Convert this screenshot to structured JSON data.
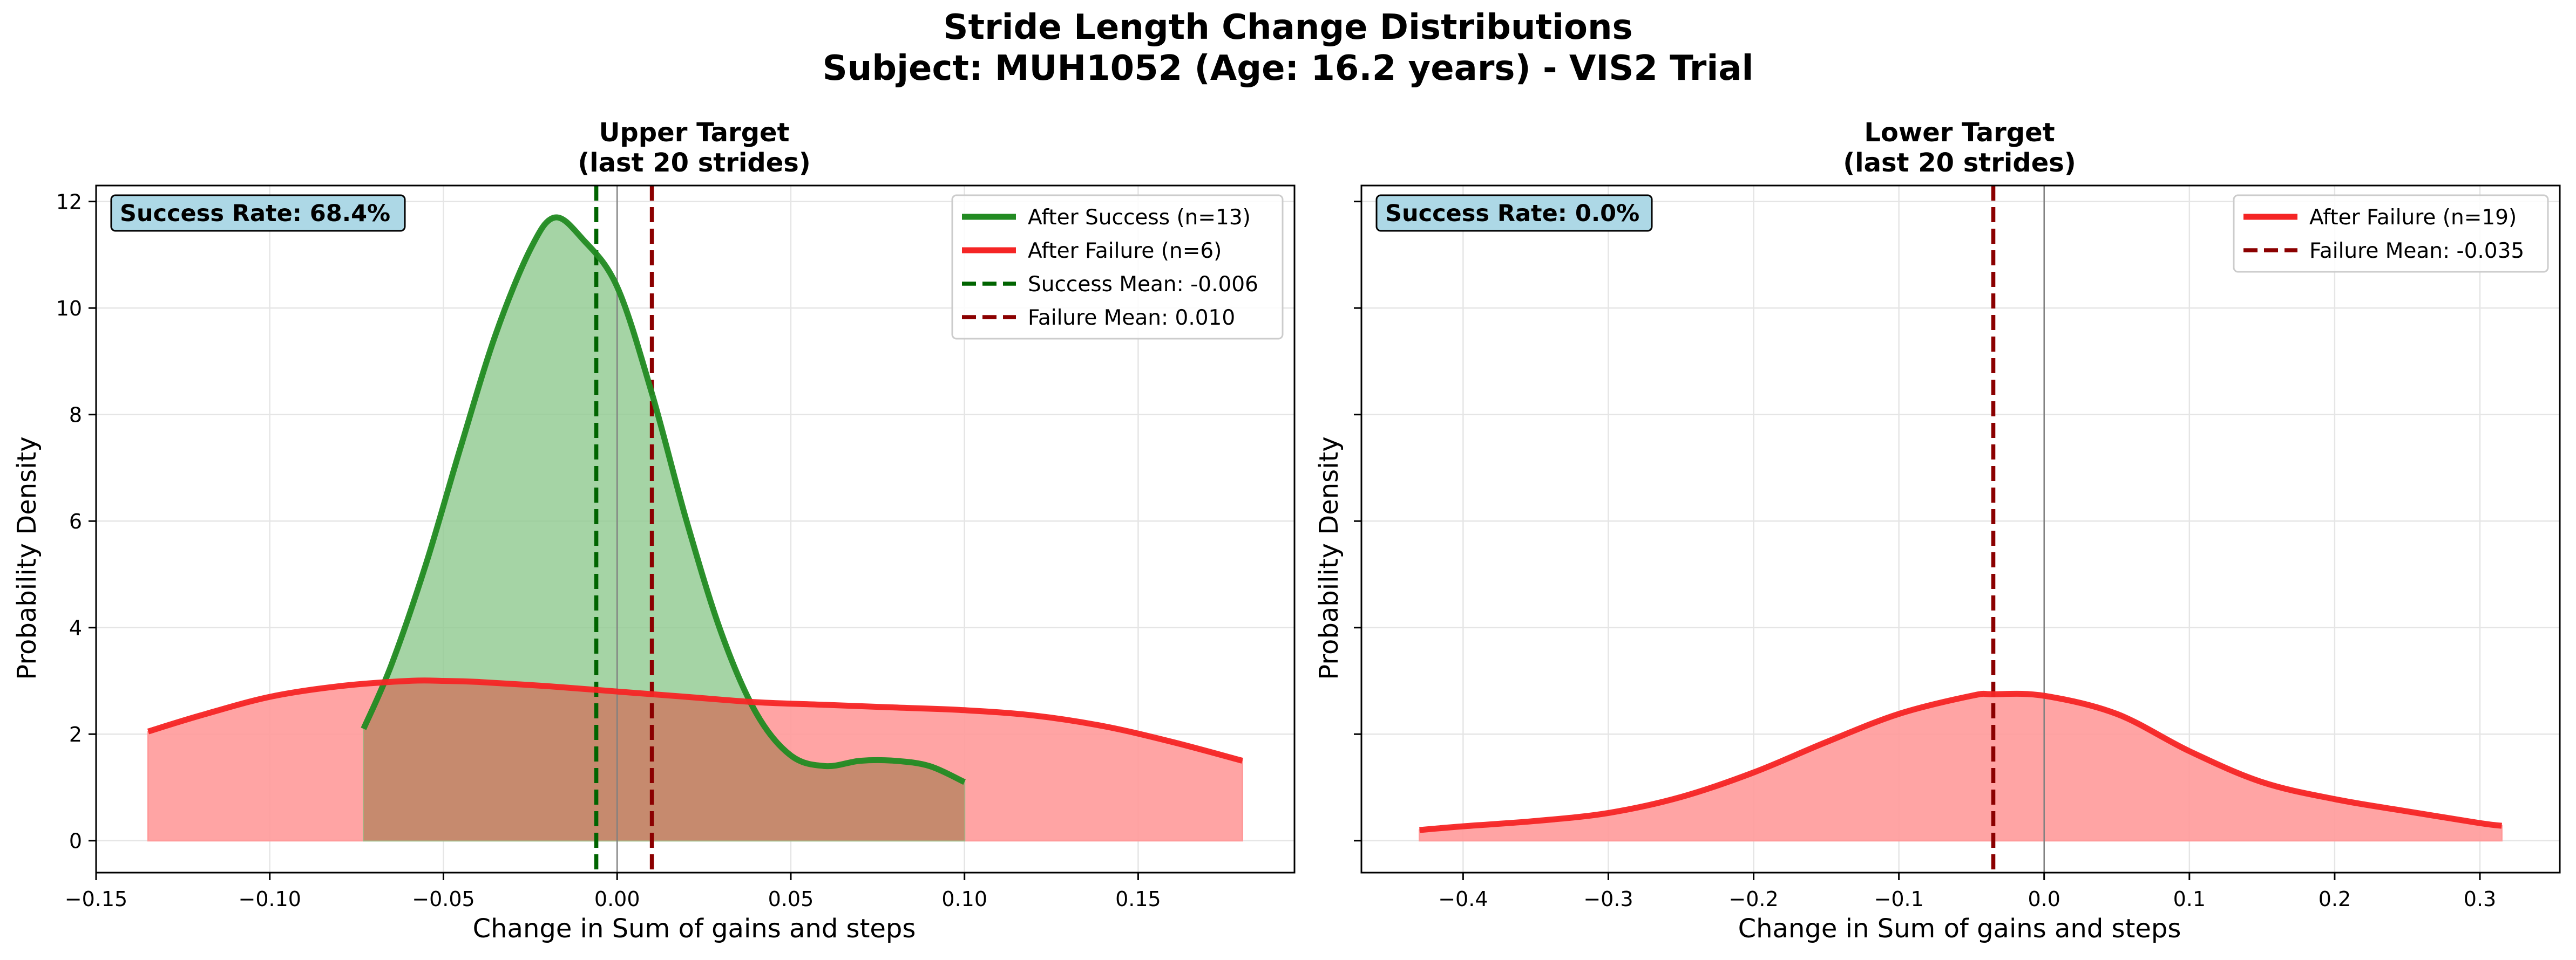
{
  "figure": {
    "title_line1": "Stride Length Change Distributions",
    "title_line2": "Subject: MUH1052 (Age: 16.2 years) - VIS2 Trial"
  },
  "colors": {
    "success": "#228B22",
    "success_fill": "#8FC98F",
    "failure": "#F52525",
    "failure_fill": "#FF9A9A",
    "success_mean": "#006400",
    "failure_mean": "#8B0000",
    "zero_line": "#808080",
    "badge_bg": "#ADD8E6",
    "grid": "#E5E5E5"
  },
  "chart_data": [
    {
      "type": "area",
      "title": "Upper Target",
      "subtitle": "(last 20 strides)",
      "xlabel": "Change in Sum of gains and steps",
      "ylabel": "Probability Density",
      "xlim": [
        -0.15,
        0.195
      ],
      "ylim": [
        -0.6,
        12.3
      ],
      "xticks": [
        -0.15,
        -0.1,
        -0.05,
        0.0,
        0.05,
        0.1,
        0.15
      ],
      "xtick_labels": [
        "−0.15",
        "−0.10",
        "−0.05",
        "0.00",
        "0.05",
        "0.10",
        "0.15"
      ],
      "yticks": [
        0,
        2,
        4,
        6,
        8,
        10,
        12
      ],
      "ytick_labels": [
        "0",
        "2",
        "4",
        "6",
        "8",
        "10",
        "12"
      ],
      "grid": true,
      "legend_position": "top-right",
      "badge": "Success Rate: 68.4%",
      "series": [
        {
          "name": "After Success (n=13)",
          "color_key": "success",
          "x": [
            -0.073,
            -0.065,
            -0.055,
            -0.045,
            -0.035,
            -0.025,
            -0.018,
            -0.01,
            0.0,
            0.01,
            0.02,
            0.03,
            0.04,
            0.05,
            0.06,
            0.07,
            0.08,
            0.09,
            0.1
          ],
          "y": [
            2.1,
            3.3,
            5.2,
            7.4,
            9.5,
            11.1,
            11.7,
            11.3,
            10.4,
            8.4,
            6.0,
            3.9,
            2.4,
            1.6,
            1.4,
            1.5,
            1.5,
            1.4,
            1.1
          ]
        },
        {
          "name": "After Failure (n=6)",
          "color_key": "failure",
          "x": [
            -0.135,
            -0.12,
            -0.1,
            -0.08,
            -0.06,
            -0.05,
            -0.04,
            -0.02,
            0.0,
            0.02,
            0.04,
            0.06,
            0.08,
            0.1,
            0.12,
            0.14,
            0.16,
            0.18
          ],
          "y": [
            2.05,
            2.35,
            2.7,
            2.9,
            3.0,
            3.0,
            2.98,
            2.9,
            2.8,
            2.7,
            2.6,
            2.55,
            2.5,
            2.45,
            2.35,
            2.15,
            1.85,
            1.5
          ]
        }
      ],
      "mean_lines": [
        {
          "name": "Success Mean: -0.006",
          "x": -0.006,
          "color_key": "success_mean"
        },
        {
          "name": "Failure Mean: 0.010",
          "x": 0.01,
          "color_key": "failure_mean"
        }
      ],
      "zero_line_x": 0.0
    },
    {
      "type": "area",
      "title": "Lower Target",
      "subtitle": "(last 20 strides)",
      "xlabel": "Change in Sum of gains and steps",
      "ylabel": "Probability Density",
      "xlim": [
        -0.47,
        0.355
      ],
      "ylim": [
        -0.6,
        12.3
      ],
      "xticks": [
        -0.4,
        -0.3,
        -0.2,
        -0.1,
        0.0,
        0.1,
        0.2,
        0.3
      ],
      "xtick_labels": [
        "−0.4",
        "−0.3",
        "−0.2",
        "−0.1",
        "0.0",
        "0.1",
        "0.2",
        "0.3"
      ],
      "yticks": [
        0,
        2,
        4,
        6,
        8,
        10,
        12
      ],
      "ytick_labels": [
        "",
        "",
        "",
        "",
        "",
        "",
        ""
      ],
      "grid": true,
      "legend_position": "top-right",
      "badge": "Success Rate: 0.0%",
      "series": [
        {
          "name": "After Failure (n=19)",
          "color_key": "failure",
          "x": [
            -0.43,
            -0.4,
            -0.35,
            -0.3,
            -0.25,
            -0.2,
            -0.15,
            -0.1,
            -0.05,
            -0.035,
            0.0,
            0.05,
            0.1,
            0.15,
            0.2,
            0.25,
            0.3,
            0.315
          ],
          "y": [
            0.2,
            0.27,
            0.37,
            0.52,
            0.82,
            1.28,
            1.85,
            2.38,
            2.72,
            2.75,
            2.72,
            2.38,
            1.68,
            1.1,
            0.78,
            0.55,
            0.33,
            0.28
          ]
        }
      ],
      "mean_lines": [
        {
          "name": "Failure Mean: -0.035",
          "x": -0.035,
          "color_key": "failure_mean"
        }
      ],
      "zero_line_x": 0.0
    }
  ]
}
